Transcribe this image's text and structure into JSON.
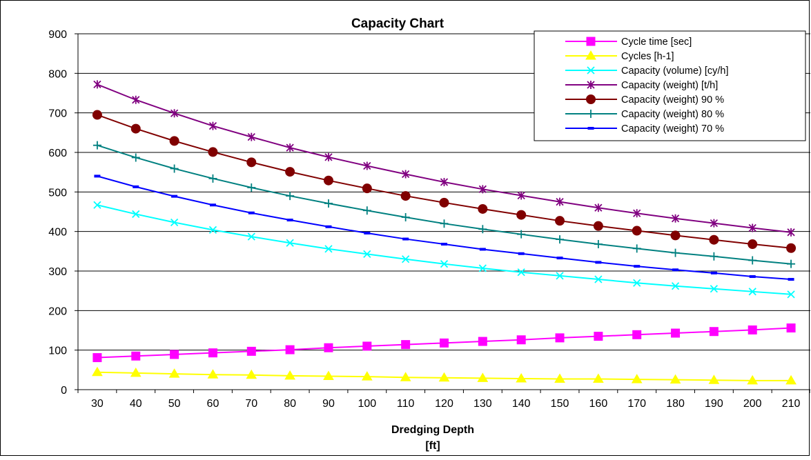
{
  "chart_data": {
    "type": "line",
    "title": "Capacity Chart",
    "xlabel": "Dredging Depth",
    "xlabel2": "[ft]",
    "ylabel": "",
    "ylim": [
      0,
      900
    ],
    "yticks": [
      0,
      100,
      200,
      300,
      400,
      500,
      600,
      700,
      800,
      900
    ],
    "categories": [
      "30",
      "40",
      "50",
      "60",
      "70",
      "80",
      "90",
      "100",
      "110",
      "120",
      "130",
      "140",
      "150",
      "160",
      "170",
      "180",
      "190",
      "200",
      "210"
    ],
    "grid": "horizontal",
    "legend_position": "top-right",
    "series": [
      {
        "name": "Cycle time [sec]",
        "color": "#ff00ff",
        "marker": "square",
        "values": [
          81,
          85,
          89,
          93,
          97,
          101,
          106,
          110,
          114,
          118,
          122,
          126,
          131,
          135,
          139,
          143,
          147,
          151,
          156
        ]
      },
      {
        "name": "Cycles [h-1]",
        "color": "#ffff00",
        "marker": "triangle",
        "values": [
          44,
          42,
          40,
          38,
          37,
          35,
          34,
          33,
          31,
          30,
          29,
          28,
          27,
          27,
          26,
          25,
          24,
          23,
          23
        ]
      },
      {
        "name": "Capacity (volume) [cy/h]",
        "color": "#00ffff",
        "marker": "x",
        "values": [
          467,
          444,
          423,
          404,
          387,
          371,
          356,
          343,
          330,
          318,
          307,
          297,
          288,
          279,
          270,
          262,
          255,
          248,
          241
        ]
      },
      {
        "name": "Capacity (weight) [t/h]",
        "color": "#800080",
        "marker": "star",
        "values": [
          772,
          733,
          699,
          667,
          639,
          612,
          588,
          566,
          545,
          525,
          507,
          491,
          475,
          460,
          446,
          433,
          421,
          409,
          398
        ]
      },
      {
        "name": "Capacity (weight) 90 %",
        "color": "#800000",
        "marker": "circle",
        "values": [
          695,
          660,
          629,
          601,
          575,
          551,
          529,
          509,
          490,
          473,
          457,
          442,
          427,
          414,
          402,
          390,
          379,
          368,
          358
        ]
      },
      {
        "name": "Capacity (weight) 80 %",
        "color": "#008080",
        "marker": "plus",
        "values": [
          618,
          587,
          559,
          534,
          511,
          490,
          471,
          453,
          436,
          420,
          406,
          393,
          380,
          368,
          357,
          346,
          337,
          327,
          318
        ]
      },
      {
        "name": "Capacity (weight) 70 %",
        "color": "#0000ff",
        "marker": "dash",
        "values": [
          540,
          513,
          489,
          467,
          447,
          429,
          412,
          396,
          381,
          368,
          355,
          344,
          333,
          322,
          312,
          303,
          295,
          286,
          279
        ]
      }
    ]
  }
}
